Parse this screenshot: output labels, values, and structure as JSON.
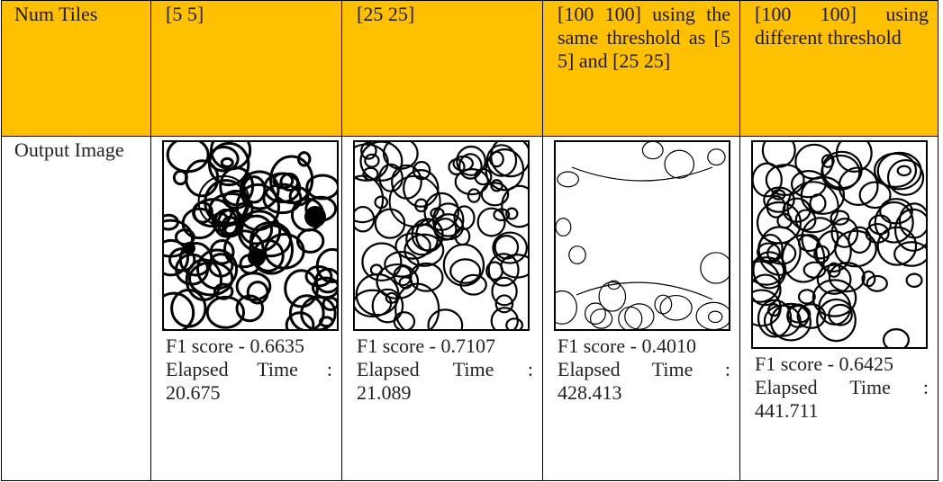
{
  "table": {
    "header": [
      "Num Tiles",
      "[5 5]",
      "[25 25]",
      "[100 100] using the same threshold as [5 5] and [25 25]",
      "[100 100] using different threshold"
    ],
    "row_label": "Output Image",
    "cells": [
      {
        "f1": "F1 score - 0.6635",
        "time": "Elapsed Time : 20.675"
      },
      {
        "f1": "F1 score - 0.7107",
        "time": "Elapsed Time : 21.089"
      },
      {
        "f1": "F1 score - 0.4010",
        "time": "Elapsed Time : 428.413"
      },
      {
        "f1": "F1 score - 0.6425",
        "time": "Elapsed Time : 441.711"
      }
    ]
  }
}
